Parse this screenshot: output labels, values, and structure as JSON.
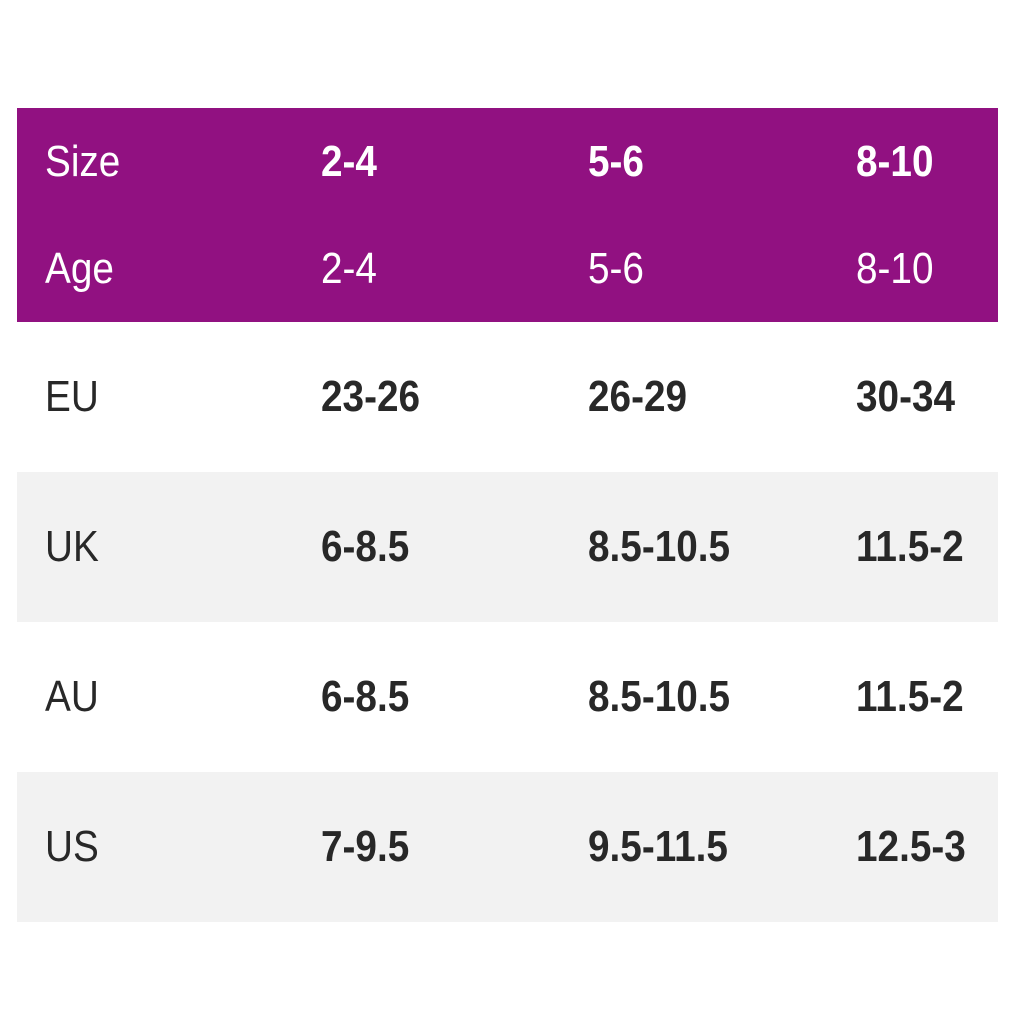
{
  "colors": {
    "page_bg": "#ffffff",
    "header_bg": "#911181",
    "header_text": "#ffffff",
    "row_bg": "#ffffff",
    "row_alt_bg": "#f2f2f2",
    "body_text": "#282828"
  },
  "table": {
    "header_rows": [
      {
        "label": "Size",
        "values": [
          "2-4",
          "5-6",
          "8-10"
        ]
      },
      {
        "label": "Age",
        "values": [
          "2-4",
          "5-6",
          "8-10"
        ]
      }
    ],
    "body_rows": [
      {
        "label": "EU",
        "values": [
          "23-26",
          "26-29",
          "30-34"
        ]
      },
      {
        "label": "UK",
        "values": [
          "6-8.5",
          "8.5-10.5",
          "11.5-2"
        ]
      },
      {
        "label": "AU",
        "values": [
          "6-8.5",
          "8.5-10.5",
          "11.5-2"
        ]
      },
      {
        "label": "US",
        "values": [
          "7-9.5",
          "9.5-11.5",
          "12.5-3"
        ]
      }
    ]
  },
  "chart_data": {
    "type": "table",
    "columns": [
      "Size",
      "2-4",
      "5-6",
      "8-10"
    ],
    "rows": [
      [
        "Age",
        "2-4",
        "5-6",
        "8-10"
      ],
      [
        "EU",
        "23-26",
        "26-29",
        "30-34"
      ],
      [
        "UK",
        "6-8.5",
        "8.5-10.5",
        "11.5-2"
      ],
      [
        "AU",
        "6-8.5",
        "8.5-10.5",
        "11.5-2"
      ],
      [
        "US",
        "7-9.5",
        "9.5-11.5",
        "12.5-3"
      ]
    ],
    "title": "",
    "layout": "size conversion chart, magenta header band, alternating row shading"
  }
}
